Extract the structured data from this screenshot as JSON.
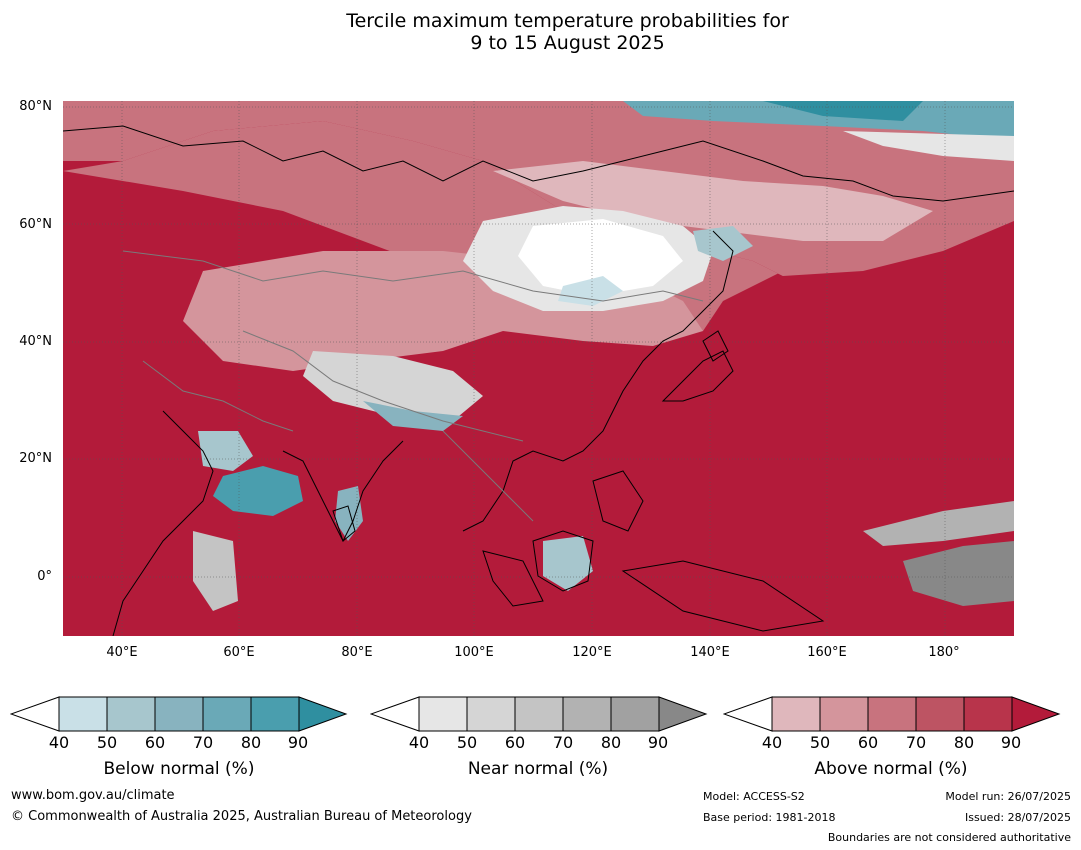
{
  "title": {
    "line1": "Tercile maximum temperature probabilities for",
    "line2": "9 to 15 August 2025"
  },
  "map": {
    "lat_labels": [
      "80°N",
      "60°N",
      "40°N",
      "20°N",
      "0°"
    ],
    "lon_labels": [
      "40°E",
      "60°E",
      "80°E",
      "100°E",
      "120°E",
      "140°E",
      "160°E",
      "180°"
    ],
    "colors": {
      "above": [
        "#dfb7bc",
        "#d4959c",
        "#c8737e",
        "#bd5463",
        "#b8344b",
        "#b31b3a"
      ],
      "near": [
        "#e6e6e6",
        "#d5d5d5",
        "#c4c4c4",
        "#b2b2b2",
        "#a1a1a1",
        "#888888"
      ],
      "below": [
        "#c9e0e7",
        "#a7c6cd",
        "#88b3bf",
        "#6aa9b7",
        "#4a9eae",
        "#2f8fa0"
      ]
    }
  },
  "colorbars": [
    {
      "title": "Below normal (%)",
      "ticks": [
        "40",
        "50",
        "60",
        "70",
        "80",
        "90"
      ]
    },
    {
      "title": "Near normal (%)",
      "ticks": [
        "40",
        "50",
        "60",
        "70",
        "80",
        "90"
      ]
    },
    {
      "title": "Above normal (%)",
      "ticks": [
        "40",
        "50",
        "60",
        "70",
        "80",
        "90"
      ]
    }
  ],
  "footer": {
    "website": "www.bom.gov.au/climate",
    "copyright": "© Commonwealth of Australia 2025, Australian Bureau of Meteorology",
    "model": "Model: ACCESS-S2",
    "base_period": "Base period: 1981-2018",
    "model_run": "Model run: 26/07/2025",
    "issued": "Issued: 28/07/2025",
    "disclaimer": "Boundaries are not considered authoritative"
  }
}
